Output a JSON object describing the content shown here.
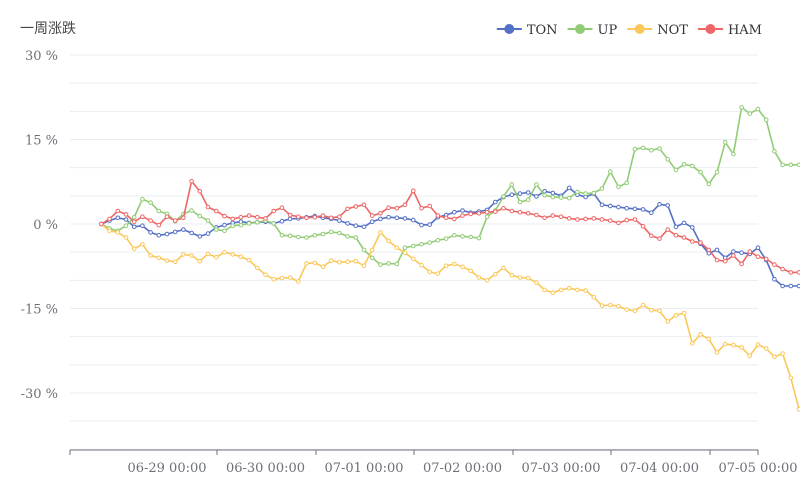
{
  "chart_data": {
    "type": "line",
    "title": "一周涨跌",
    "y_unit": " %",
    "ylim": [
      -40,
      30
    ],
    "y_ticks": [
      30,
      15,
      0,
      -15,
      -30
    ],
    "y_tick_labels": [
      "30 %",
      "15 %",
      "0 %",
      "-15 %",
      "-30 %"
    ],
    "grid": true,
    "legend_position": "top-right",
    "x_range": [
      "2024-06-28 08:00",
      "2024-07-05 12:00"
    ],
    "x_ticks": [
      "2024-06-29 00:00",
      "2024-06-30 00:00",
      "2024-07-01 00:00",
      "2024-07-02 00:00",
      "2024-07-03 00:00",
      "2024-07-04 00:00",
      "2024-07-05 00:00"
    ],
    "x_tick_labels": [
      "06-29 00:00",
      "06-30 00:00",
      "07-01 00:00",
      "07-02 00:00",
      "07-03 00:00",
      "07-04 00:00",
      "07-05 00:00"
    ],
    "x": [
      "06-28 08:00",
      "06-28 10:00",
      "06-28 12:00",
      "06-28 14:00",
      "06-28 16:00",
      "06-28 18:00",
      "06-28 20:00",
      "06-28 22:00",
      "06-29 00:00",
      "06-29 02:00",
      "06-29 04:00",
      "06-29 06:00",
      "06-29 08:00",
      "06-29 10:00",
      "06-29 12:00",
      "06-29 14:00",
      "06-29 16:00",
      "06-29 18:00",
      "06-29 20:00",
      "06-29 22:00",
      "06-30 00:00",
      "06-30 02:00",
      "06-30 04:00",
      "06-30 06:00",
      "06-30 08:00",
      "06-30 10:00",
      "06-30 12:00",
      "06-30 14:00",
      "06-30 16:00",
      "06-30 18:00",
      "06-30 20:00",
      "06-30 22:00",
      "07-01 00:00",
      "07-01 02:00",
      "07-01 04:00",
      "07-01 06:00",
      "07-01 08:00",
      "07-01 10:00",
      "07-01 12:00",
      "07-01 14:00",
      "07-01 16:00",
      "07-01 18:00",
      "07-01 20:00",
      "07-01 22:00",
      "07-02 00:00",
      "07-02 02:00",
      "07-02 04:00",
      "07-02 06:00",
      "07-02 08:00",
      "07-02 10:00",
      "07-02 12:00",
      "07-02 14:00",
      "07-02 16:00",
      "07-02 18:00",
      "07-02 20:00",
      "07-02 22:00",
      "07-03 00:00",
      "07-03 02:00",
      "07-03 04:00",
      "07-03 06:00",
      "07-03 08:00",
      "07-03 10:00",
      "07-03 12:00",
      "07-03 14:00",
      "07-03 16:00",
      "07-03 18:00",
      "07-03 20:00",
      "07-03 22:00",
      "07-04 00:00",
      "07-04 02:00",
      "07-04 04:00",
      "07-04 06:00",
      "07-04 08:00",
      "07-04 10:00",
      "07-04 12:00",
      "07-04 14:00",
      "07-04 16:00",
      "07-04 18:00",
      "07-04 20:00",
      "07-04 22:00",
      "07-05 00:00",
      "07-05 02:00",
      "07-05 04:00",
      "07-05 06:00",
      "07-05 08:00",
      "07-05 10:00",
      "07-05 12:00"
    ],
    "series": [
      {
        "name": "TON",
        "color": "#5470c6",
        "values": [
          0,
          0.6,
          1.1,
          0.8,
          -0.5,
          -0.3,
          -1.5,
          -2.0,
          -1.8,
          -1.4,
          -1.0,
          -1.6,
          -2.2,
          -1.7,
          -0.6,
          -0.2,
          0.2,
          0.4,
          0.2,
          0.3,
          0.4,
          0.1,
          0.5,
          0.9,
          1.0,
          1.2,
          1.4,
          1.1,
          0.9,
          0.6,
          0.1,
          -0.3,
          -0.5,
          0.4,
          0.9,
          1.2,
          1.1,
          1.0,
          0.7,
          -0.2,
          -0.1,
          1.2,
          1.6,
          2.1,
          2.4,
          2.0,
          2.2,
          2.5,
          3.9,
          4.8,
          5.2,
          5.4,
          5.6,
          4.9,
          5.8,
          5.5,
          5.0,
          6.4,
          5.2,
          4.8,
          5.4,
          3.4,
          3.2,
          3.0,
          2.8,
          2.7,
          2.6,
          2.0,
          3.5,
          3.3,
          -0.5,
          0.2,
          -0.6,
          -3.5,
          -5.2,
          -4.6,
          -6.0,
          -4.9,
          -5.1,
          -5.3,
          -4.2,
          -6.4,
          -9.8,
          -11.0,
          -11.0,
          -11.0,
          -11.0
        ]
      },
      {
        "name": "UP",
        "color": "#91cc75",
        "values": [
          0,
          -0.8,
          -1.2,
          -0.3,
          1.2,
          4.4,
          3.8,
          2.3,
          1.8,
          0.5,
          1.8,
          2.4,
          1.4,
          0.6,
          -1.0,
          -1.2,
          -0.3,
          -0.2,
          0.1,
          0.3,
          0.6,
          0.1,
          -2.0,
          -2.1,
          -2.3,
          -2.4,
          -2.0,
          -1.8,
          -1.4,
          -1.6,
          -2.2,
          -2.4,
          -4.6,
          -6.0,
          -7.2,
          -7.0,
          -7.1,
          -4.2,
          -3.9,
          -3.6,
          -3.3,
          -2.9,
          -2.6,
          -2.0,
          -2.2,
          -2.3,
          -2.5,
          1.3,
          2.4,
          4.9,
          7.0,
          3.9,
          4.3,
          7.0,
          5.1,
          4.8,
          4.7,
          4.6,
          5.7,
          5.4,
          5.5,
          6.3,
          9.3,
          6.6,
          7.3,
          13.3,
          13.5,
          13.1,
          13.4,
          11.5,
          9.6,
          10.6,
          10.3,
          9.2,
          7.1,
          9.2,
          14.5,
          12.4,
          20.7,
          19.6,
          20.4,
          18.5,
          12.9,
          10.5,
          10.5,
          10.5,
          10.5
        ]
      },
      {
        "name": "NOT",
        "color": "#fac858",
        "values": [
          0,
          -1.2,
          -1.5,
          -2.4,
          -4.4,
          -3.6,
          -5.6,
          -6.0,
          -6.5,
          -6.7,
          -5.4,
          -5.6,
          -6.6,
          -5.3,
          -5.9,
          -5.0,
          -5.4,
          -5.8,
          -6.4,
          -7.8,
          -9.0,
          -9.8,
          -9.6,
          -9.5,
          -10.2,
          -7.0,
          -6.9,
          -7.6,
          -6.5,
          -6.8,
          -6.7,
          -6.6,
          -7.4,
          -4.6,
          -1.5,
          -3.0,
          -4.2,
          -5.1,
          -6.2,
          -7.3,
          -8.5,
          -8.8,
          -7.4,
          -7.1,
          -7.6,
          -8.3,
          -9.5,
          -10.0,
          -8.9,
          -7.8,
          -9.1,
          -9.5,
          -9.6,
          -10.4,
          -11.7,
          -12.2,
          -11.7,
          -11.4,
          -11.7,
          -11.8,
          -13.0,
          -14.5,
          -14.4,
          -14.6,
          -15.2,
          -15.4,
          -14.4,
          -15.3,
          -15.4,
          -17.3,
          -16.2,
          -15.8,
          -21.2,
          -19.6,
          -20.4,
          -22.8,
          -21.3,
          -21.5,
          -21.9,
          -23.4,
          -21.4,
          -22.1,
          -23.6,
          -23.0,
          -27.3,
          -32.9,
          -34.6
        ]
      },
      {
        "name": "HAM",
        "color": "#ee6666",
        "values": [
          0,
          0.9,
          2.3,
          1.7,
          0.4,
          1.3,
          0.6,
          -0.2,
          1.3,
          0.6,
          1.1,
          7.6,
          5.8,
          3.0,
          2.3,
          1.4,
          0.9,
          1.2,
          1.5,
          1.2,
          1.0,
          2.3,
          2.9,
          1.6,
          1.3,
          1.1,
          1.2,
          1.5,
          1.1,
          1.3,
          2.7,
          3.1,
          3.4,
          1.5,
          1.9,
          2.9,
          2.8,
          3.4,
          5.9,
          2.8,
          3.2,
          1.5,
          1.1,
          0.9,
          1.5,
          1.8,
          1.9,
          2.1,
          2.2,
          2.8,
          2.3,
          2.1,
          1.9,
          1.6,
          1.1,
          1.5,
          1.3,
          1.0,
          0.8,
          0.9,
          1.0,
          0.8,
          0.6,
          0.2,
          0.7,
          0.8,
          -0.4,
          -2.1,
          -2.6,
          -1.0,
          -2.0,
          -2.4,
          -3.1,
          -3.3,
          -4.6,
          -6.4,
          -6.6,
          -5.6,
          -7.1,
          -4.9,
          -5.8,
          -6.2,
          -7.2,
          -8.0,
          -8.6,
          -8.6,
          -8.6
        ]
      }
    ]
  }
}
